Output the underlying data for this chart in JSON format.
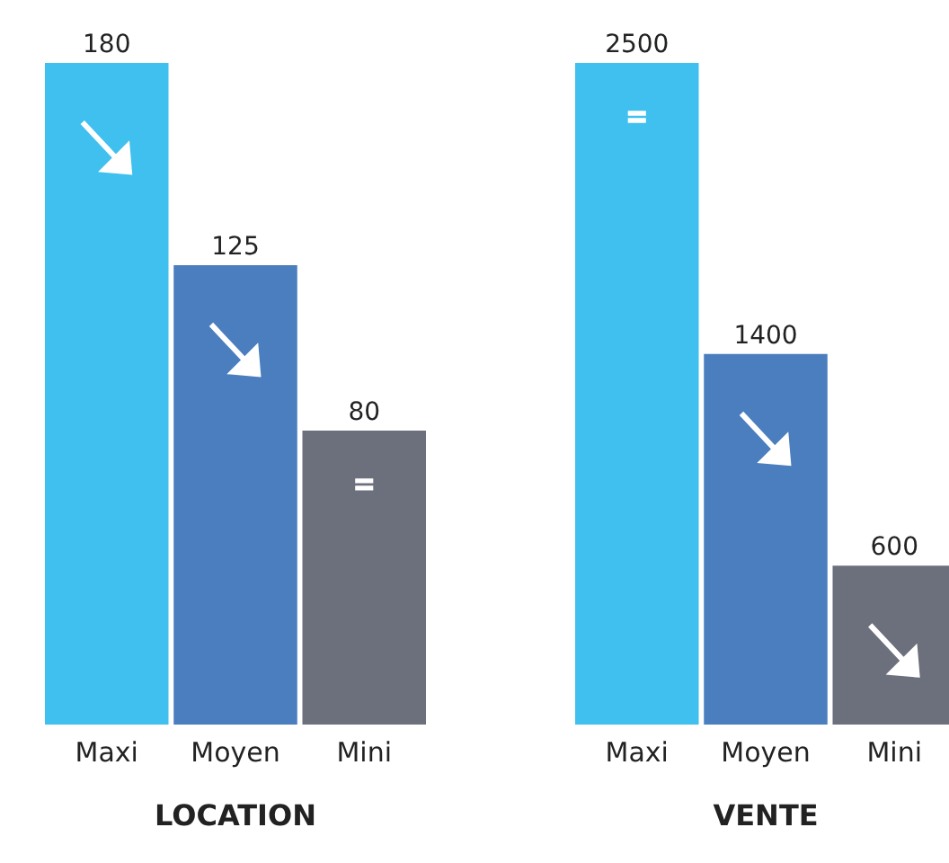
{
  "chart_data": [
    {
      "type": "bar",
      "title": "LOCATION",
      "categories": [
        "Maxi",
        "Moyen",
        "Mini"
      ],
      "values": [
        180,
        125,
        80
      ],
      "colors": [
        "#3fc0ef",
        "#4a7ebf",
        "#6c6f7c"
      ],
      "data_labels": true
    },
    {
      "type": "bar",
      "title": "VENTE",
      "categories": [
        "Maxi",
        "Moyen",
        "Mini"
      ],
      "values": [
        2500,
        1400,
        600
      ],
      "colors": [
        "#3fc0ef",
        "#4a7ebf",
        "#6c6f7c"
      ],
      "data_labels": true
    }
  ]
}
